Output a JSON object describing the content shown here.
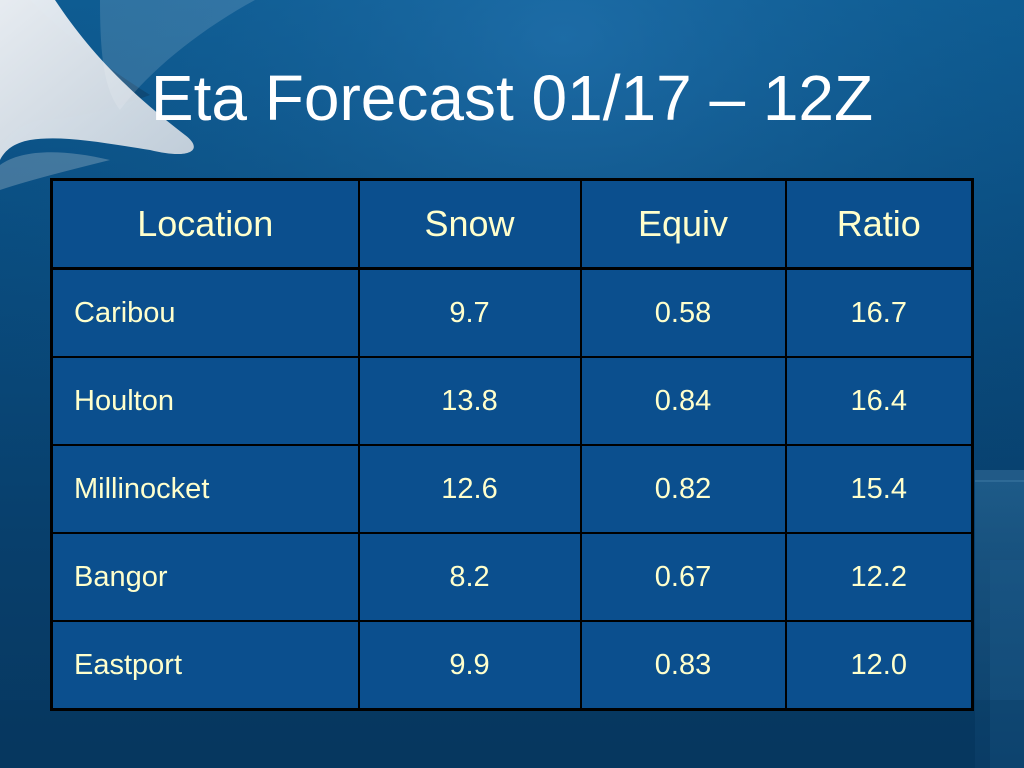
{
  "slide": {
    "title": "Eta Forecast 01/17 – 12Z"
  },
  "table": {
    "headers": [
      "Location",
      "Snow",
      "Equiv",
      "Ratio"
    ],
    "rows": [
      {
        "location": "Caribou",
        "snow": "9.7",
        "equiv": "0.58",
        "ratio": "16.7"
      },
      {
        "location": "Houlton",
        "snow": "13.8",
        "equiv": "0.84",
        "ratio": "16.4"
      },
      {
        "location": "Millinocket",
        "snow": "12.6",
        "equiv": "0.82",
        "ratio": "15.4"
      },
      {
        "location": "Bangor",
        "snow": "8.2",
        "equiv": "0.67",
        "ratio": "12.2"
      },
      {
        "location": "Eastport",
        "snow": "9.9",
        "equiv": "0.83",
        "ratio": "12.0"
      }
    ]
  },
  "colors": {
    "background": "#0a4d80",
    "table_fill": "#0b4f8e",
    "table_text": "#ffffcc",
    "title_text": "#ffffff",
    "grid": "#000000"
  }
}
